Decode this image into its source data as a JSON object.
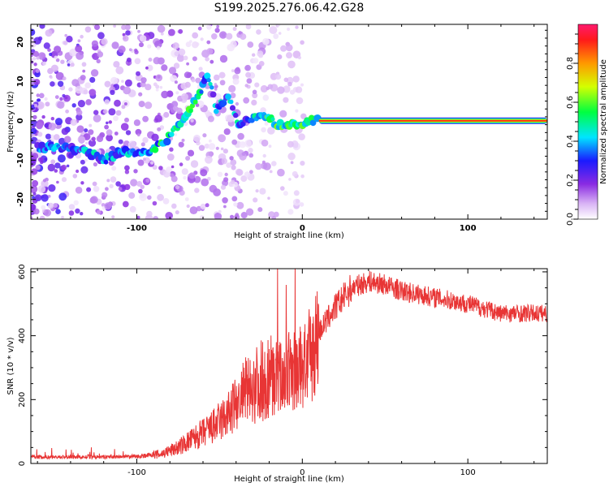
{
  "title": "S199.2025.276.06.42.G28",
  "chart_data": [
    {
      "type": "heatmap",
      "xlabel": "Height of straight line (km)",
      "ylabel": "Frequency (Hz)",
      "xlim": [
        -164,
        148
      ],
      "ylim": [
        -25,
        24.5
      ],
      "xticks": [
        -100,
        0,
        100
      ],
      "yticks": [
        -20,
        -10,
        0,
        10,
        20
      ],
      "colorbar": {
        "label": "Normalized spectral amplitude",
        "range": [
          0,
          1
        ],
        "ticks": [
          0.0,
          0.2,
          0.4,
          0.6,
          0.8
        ],
        "tick_labels": [
          "0.0",
          "0.2",
          "0.4",
          "0.6",
          "0.8"
        ]
      },
      "ridge": {
        "height_km": [
          -160,
          -150,
          -140,
          -130,
          -120,
          -110,
          -100,
          -90,
          -80,
          -70,
          -62,
          -57,
          -52,
          -45,
          -38,
          -30,
          -25,
          -20,
          -15,
          -10,
          -5,
          0,
          5,
          10,
          20,
          40,
          60,
          80,
          100,
          120,
          148
        ],
        "frequency_hz": [
          -7,
          -6.5,
          -7,
          -8,
          -10,
          -8,
          -8,
          -7.5,
          -4,
          1,
          7,
          12,
          3,
          6,
          -1,
          1,
          1.5,
          0.5,
          -1,
          -1.5,
          -1,
          -1.5,
          0,
          0.3,
          0,
          0,
          0,
          0,
          0,
          0,
          0
        ]
      }
    },
    {
      "type": "line",
      "xlabel": "Height of straight line (km)",
      "ylabel": "SNR (10 * v/v)",
      "xlim": [
        -164,
        148
      ],
      "ylim": [
        0,
        610
      ],
      "xticks": [
        -100,
        0,
        100
      ],
      "yticks": [
        0,
        200,
        400,
        600
      ],
      "series": [
        {
          "name": "SNR",
          "color": "#e83535",
          "x": [
            -164,
            -140,
            -120,
            -100,
            -85,
            -75,
            -65,
            -55,
            -45,
            -35,
            -25,
            -15,
            -5,
            0,
            5,
            10,
            20,
            30,
            40,
            50,
            60,
            80,
            100,
            120,
            148
          ],
          "y": [
            20,
            20,
            20,
            22,
            30,
            50,
            80,
            110,
            150,
            220,
            260,
            270,
            290,
            300,
            340,
            410,
            490,
            550,
            570,
            560,
            540,
            520,
            500,
            470,
            470
          ]
        }
      ]
    }
  ]
}
